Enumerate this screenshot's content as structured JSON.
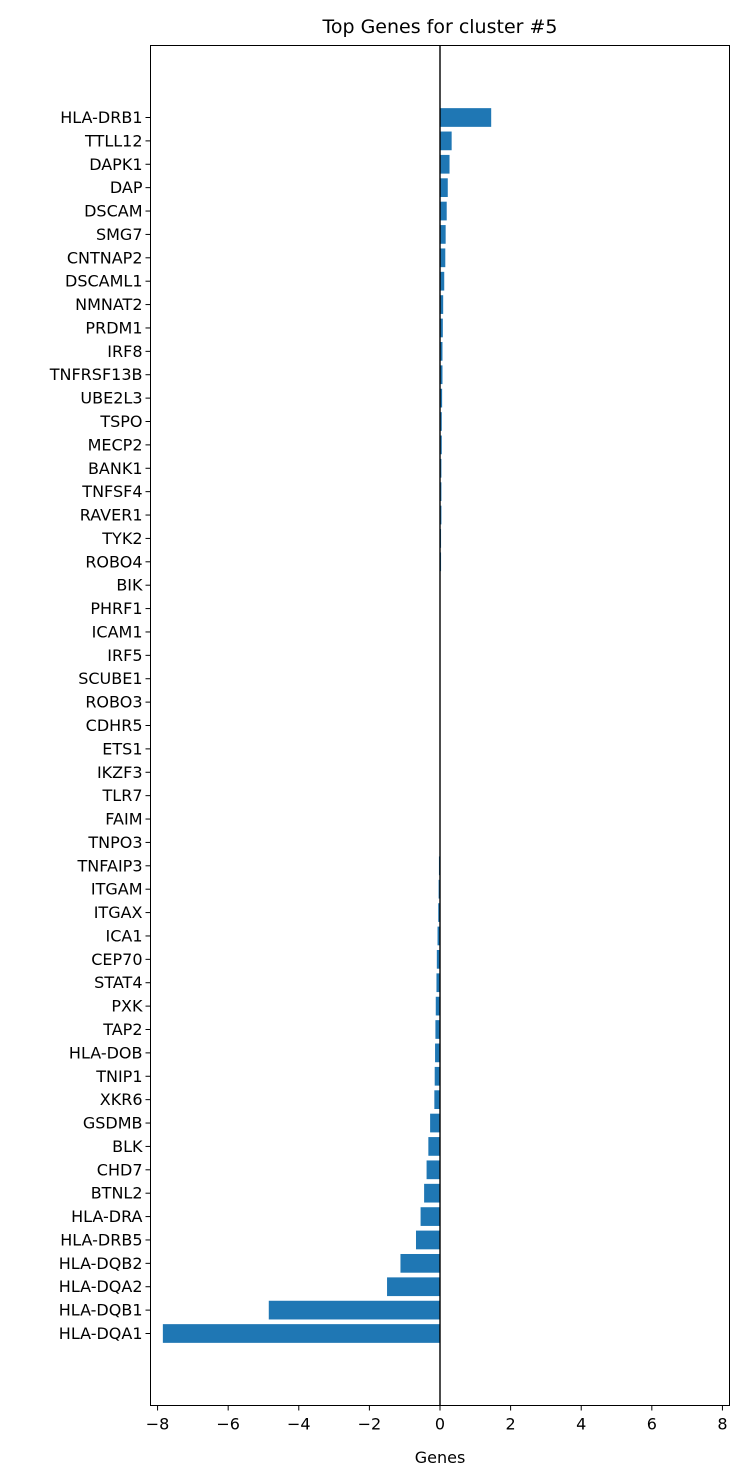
{
  "chart_data": {
    "type": "bar",
    "orientation": "horizontal",
    "title": "Top Genes for cluster #5",
    "xlabel": "Genes",
    "ylabel": "",
    "xlim": [
      -8.2,
      8.2
    ],
    "xticks": [
      -8,
      -6,
      -4,
      -2,
      0,
      2,
      4,
      6,
      8
    ],
    "xtick_labels": [
      "−8",
      "−6",
      "−4",
      "−2",
      "0",
      "2",
      "4",
      "6",
      "8"
    ],
    "bar_color": "#1f77b4",
    "zero_line": true,
    "grid": false,
    "categories": [
      "HLA-DRB1",
      "TTLL12",
      "DAPK1",
      "DAP",
      "DSCAM",
      "SMG7",
      "CNTNAP2",
      "DSCAML1",
      "NMNAT2",
      "PRDM1",
      "IRF8",
      "TNFRSF13B",
      "UBE2L3",
      "TSPO",
      "MECP2",
      "BANK1",
      "TNFSF4",
      "RAVER1",
      "TYK2",
      "ROBO4",
      "BIK",
      "PHRF1",
      "ICAM1",
      "IRF5",
      "SCUBE1",
      "ROBO3",
      "CDHR5",
      "ETS1",
      "IKZF3",
      "TLR7",
      "FAIM",
      "TNPO3",
      "TNFAIP3",
      "ITGAM",
      "ITGAX",
      "ICA1",
      "CEP70",
      "STAT4",
      "PXK",
      "TAP2",
      "HLA-DOB",
      "TNIP1",
      "XKR6",
      "GSDMB",
      "BLK",
      "CHD7",
      "BTNL2",
      "HLA-DRA",
      "HLA-DRB5",
      "HLA-DQB2",
      "HLA-DQA2",
      "HLA-DQB1",
      "HLA-DQA1"
    ],
    "values": [
      1.45,
      0.33,
      0.27,
      0.22,
      0.19,
      0.16,
      0.15,
      0.12,
      0.09,
      0.08,
      0.07,
      0.07,
      0.06,
      0.05,
      0.05,
      0.04,
      0.04,
      0.04,
      0.03,
      0.03,
      0.0,
      0.0,
      0.0,
      0.0,
      0.0,
      0.0,
      0.0,
      0.0,
      0.0,
      0.0,
      0.0,
      0.0,
      -0.03,
      -0.04,
      -0.05,
      -0.07,
      -0.09,
      -0.1,
      -0.12,
      -0.13,
      -0.14,
      -0.15,
      -0.16,
      -0.28,
      -0.33,
      -0.38,
      -0.45,
      -0.55,
      -0.68,
      -1.12,
      -1.5,
      -4.85,
      -7.85
    ]
  }
}
